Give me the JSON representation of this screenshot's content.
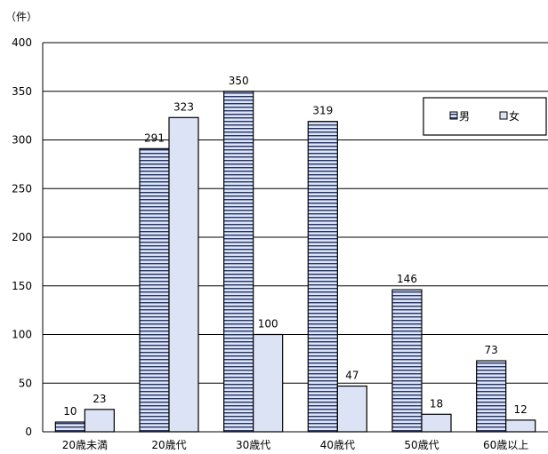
{
  "chart_data": {
    "type": "bar",
    "unit_label": "（件）",
    "categories": [
      "20歳未満",
      "20歳代",
      "30歳代",
      "40歳代",
      "50歳代",
      "60歳以上"
    ],
    "series": [
      {
        "name": "男",
        "values": [
          10,
          291,
          350,
          319,
          146,
          73
        ],
        "fill": "#dde4f2",
        "pattern": "horizontal-stripes",
        "stripe_color": "#22336e"
      },
      {
        "name": "女",
        "values": [
          23,
          323,
          100,
          47,
          18,
          12
        ],
        "fill": "#dbe3f5",
        "pattern": "solid"
      }
    ],
    "ylim": [
      0,
      400
    ],
    "yticks": [
      0,
      50,
      100,
      150,
      200,
      250,
      300,
      350,
      400
    ],
    "grid": true,
    "legend_position": "top-right",
    "data_labels": true
  }
}
